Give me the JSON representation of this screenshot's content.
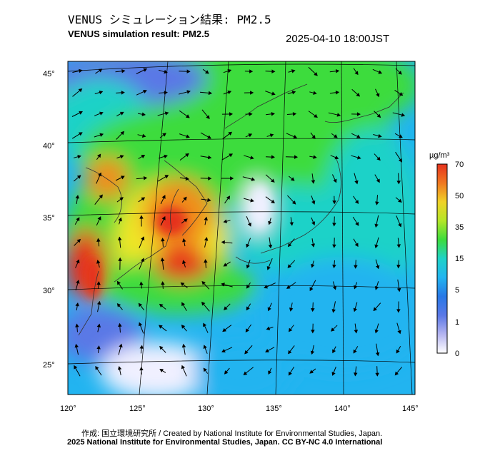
{
  "header": {
    "title_ja": "VENUS シミュレーション結果: PM2.5",
    "title_en": "VENUS simulation result: PM2.5",
    "timestamp": "2025-04-10 18:00JST"
  },
  "map": {
    "lat_ticks": [
      "45°",
      "40°",
      "35°",
      "30°",
      "25°"
    ],
    "lon_ticks": [
      "120°",
      "125°",
      "130°",
      "135°",
      "140°",
      "145°"
    ],
    "field": "PM2.5 concentration with wind vectors",
    "colors": {
      "very_low": "#f0f0ff",
      "low": "#5a78e6",
      "mid_low": "#22b4f0",
      "mid": "#1ed2c8",
      "mid_high": "#3cdc3c",
      "high": "#f0e628",
      "very_high": "#f08c1e",
      "extreme": "#e6321e"
    }
  },
  "colorbar": {
    "unit": "µg/m³",
    "labels": [
      "70",
      "50",
      "35",
      "15",
      "5",
      "1",
      "0"
    ],
    "stops": [
      "#e6321e",
      "#f07820",
      "#f0d228",
      "#b4e628",
      "#3cdc3c",
      "#1ed2c8",
      "#22b4f0",
      "#2878e6",
      "#5a78e6",
      "#b4b4f0",
      "#ffffff"
    ]
  },
  "footer": {
    "credit": "作成: 国立環境研究所 / Created by National Institute for Environmental Studies, Japan.",
    "license": "2025 National Institute for Environmental Studies, Japan. CC BY-NC 4.0 International"
  }
}
